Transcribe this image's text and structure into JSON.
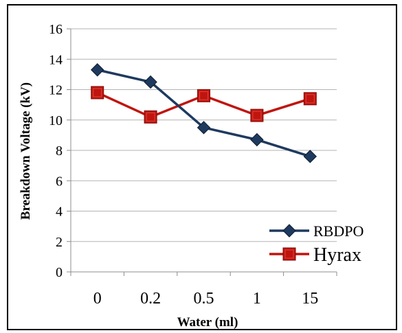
{
  "chart_data": {
    "type": "line",
    "title": "",
    "xlabel": "Water (ml)",
    "ylabel": "Breakdown Voltage (kV)",
    "categories": [
      "0",
      "0.2",
      "0.5",
      "1",
      "15"
    ],
    "ylim": [
      0,
      16
    ],
    "yticks": [
      "0",
      "2",
      "4",
      "6",
      "8",
      "10",
      "12",
      "14",
      "16"
    ],
    "grid": true,
    "legend_position": "bottom-right",
    "series": [
      {
        "name": "RBDPO",
        "values": [
          13.3,
          12.5,
          9.5,
          8.7,
          7.6
        ],
        "color": "#1f3a5f",
        "marker": "diamond"
      },
      {
        "name": "Hyrax",
        "values": [
          11.8,
          10.2,
          11.6,
          10.3,
          11.4
        ],
        "color": "#c0150f",
        "marker": "square"
      }
    ]
  }
}
